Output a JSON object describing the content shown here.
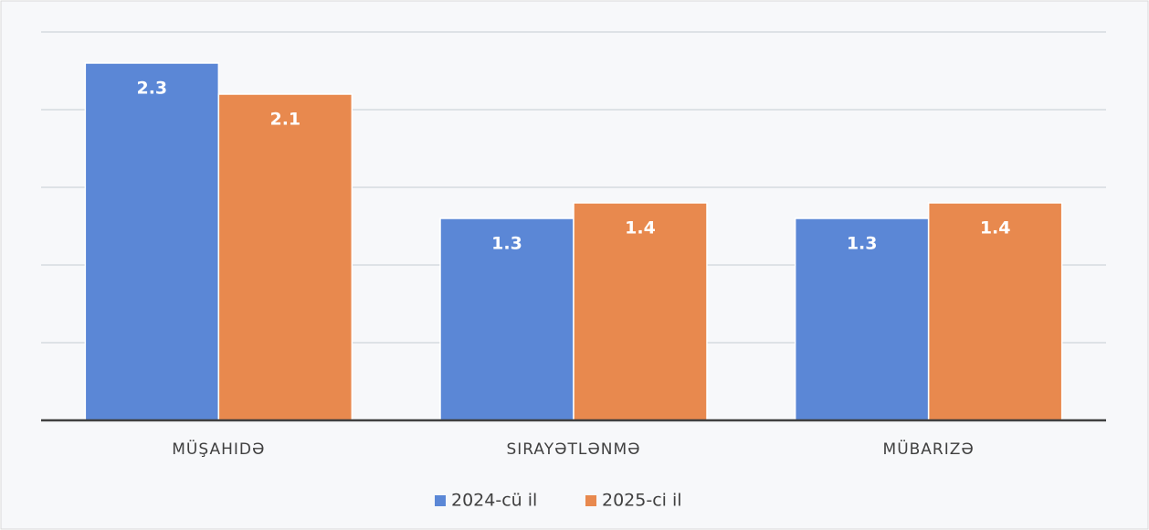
{
  "chart_data": {
    "type": "bar",
    "categories": [
      "MÜŞAHIDƏ",
      "SIRAYƏTLƏNMƏ",
      "MÜBARIZƏ"
    ],
    "series": [
      {
        "name": "2024-cü il",
        "color": "#5b87d6",
        "values": [
          2.3,
          1.3,
          1.3
        ]
      },
      {
        "name": "2025-ci il",
        "color": "#e8894e",
        "values": [
          2.1,
          1.4,
          1.4
        ]
      }
    ],
    "ylim": [
      0,
      2.5
    ],
    "yticks": [
      0,
      0.5,
      1,
      1.5,
      2,
      2.5
    ],
    "grid": true,
    "legend": "bottom"
  }
}
